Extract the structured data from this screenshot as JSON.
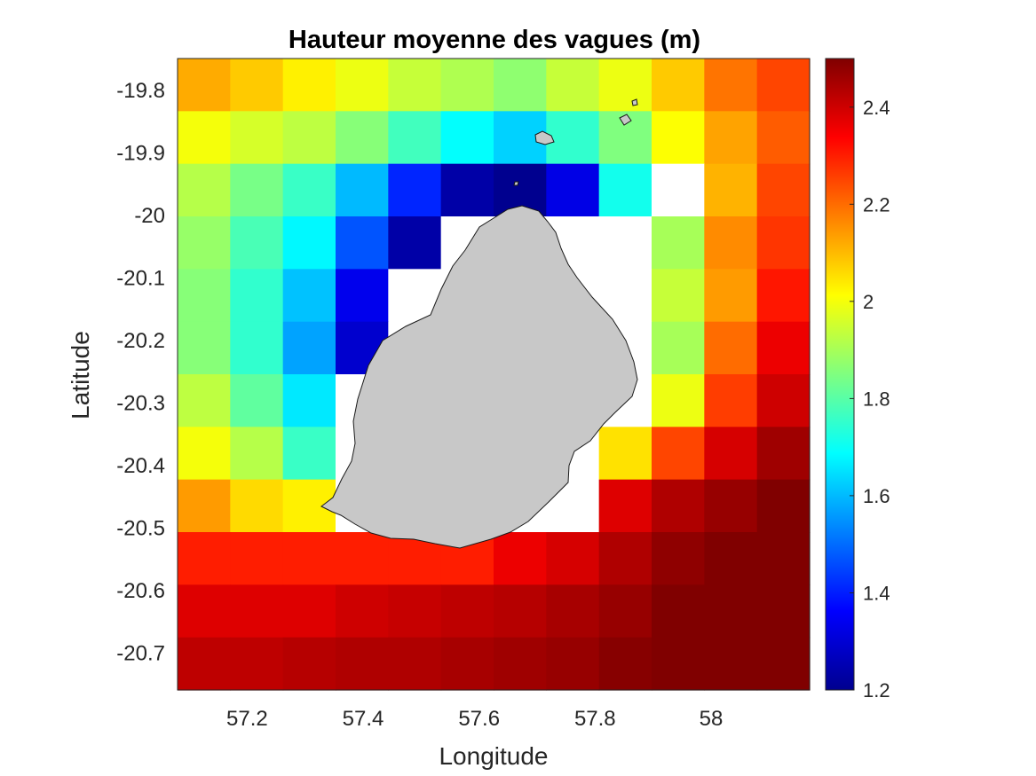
{
  "chart_data": {
    "type": "heatmap",
    "title": "Hauteur moyenne des vagues (m)",
    "xlabel": "Longitude",
    "ylabel": "Latitude",
    "x_ticks": [
      57.2,
      57.4,
      57.6,
      57.8,
      58
    ],
    "x_tick_labels": [
      "57.2",
      "57.4",
      "57.6",
      "57.8",
      "58"
    ],
    "y_ticks": [
      -19.8,
      -19.9,
      -20,
      -20.1,
      -20.2,
      -20.3,
      -20.4,
      -20.5,
      -20.6,
      -20.7
    ],
    "y_tick_labels": [
      "-19.8",
      "-19.9",
      "-20",
      "-20.1",
      "-20.2",
      "-20.3",
      "-20.4",
      "-20.5",
      "-20.6",
      "-20.7"
    ],
    "xlim": [
      57.08,
      58.17
    ],
    "ylim": [
      -20.76,
      -19.75
    ],
    "x_centers": [
      57.125,
      57.208,
      57.292,
      57.375,
      57.458,
      57.542,
      57.625,
      57.708,
      57.792,
      57.875,
      57.958,
      58.042
    ],
    "y_centers": [
      -19.792,
      -19.875,
      -19.958,
      -20.042,
      -20.125,
      -20.208,
      -20.292,
      -20.375,
      -20.458,
      -20.542,
      -20.625,
      -20.708
    ],
    "values_rows_north_to_south": [
      [
        2.12,
        2.08,
        2.03,
        1.99,
        1.94,
        1.91,
        1.87,
        1.94,
        1.99,
        2.08,
        2.19,
        2.25
      ],
      [
        2.0,
        1.96,
        1.93,
        1.86,
        1.77,
        1.69,
        1.63,
        1.75,
        1.85,
        2.01,
        2.13,
        2.22
      ],
      [
        1.92,
        1.84,
        1.76,
        1.6,
        1.41,
        1.25,
        1.22,
        1.33,
        1.71,
        null,
        2.11,
        2.25
      ],
      [
        1.88,
        1.78,
        1.68,
        1.47,
        1.25,
        null,
        null,
        null,
        null,
        1.9,
        2.16,
        2.27
      ],
      [
        1.86,
        1.75,
        1.61,
        1.34,
        null,
        null,
        null,
        null,
        null,
        1.94,
        2.14,
        2.31
      ],
      [
        1.86,
        1.75,
        1.57,
        1.3,
        null,
        null,
        null,
        null,
        null,
        1.9,
        2.2,
        2.36
      ],
      [
        1.93,
        1.81,
        1.66,
        null,
        null,
        null,
        null,
        null,
        null,
        1.99,
        2.26,
        2.4
      ],
      [
        2.0,
        1.92,
        1.76,
        null,
        null,
        null,
        null,
        null,
        2.05,
        2.25,
        2.39,
        2.46
      ],
      [
        2.14,
        2.06,
        2.03,
        null,
        null,
        null,
        null,
        null,
        2.38,
        2.44,
        2.47,
        2.5
      ],
      [
        2.3,
        2.3,
        2.3,
        2.3,
        2.3,
        2.3,
        2.36,
        2.39,
        2.44,
        2.48,
        2.52,
        2.54
      ],
      [
        2.38,
        2.38,
        2.38,
        2.4,
        2.41,
        2.42,
        2.43,
        2.45,
        2.47,
        2.5,
        2.53,
        2.56
      ],
      [
        2.42,
        2.42,
        2.43,
        2.44,
        2.44,
        2.45,
        2.46,
        2.47,
        2.49,
        2.51,
        2.54,
        2.58
      ]
    ],
    "colorbar": {
      "colormap": "jet",
      "clim": [
        1.2,
        2.5
      ],
      "ticks": [
        1.2,
        1.4,
        1.6,
        1.8,
        2,
        2.2,
        2.4
      ],
      "tick_labels": [
        "1.2",
        "1.4",
        "1.6",
        "1.8",
        "2",
        "2.2",
        "2.4"
      ]
    },
    "land_color": "#c8c8c8",
    "no_data_color": "#ffffff"
  }
}
